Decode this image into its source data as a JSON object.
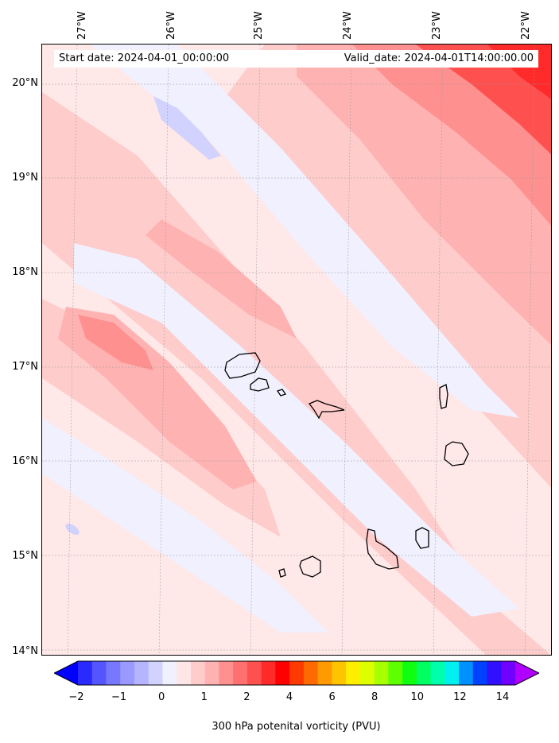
{
  "header": {
    "start_date": "Start date: 2024-04-01_00:00:00",
    "valid_date": "Valid_date: 2024-04-01T14:00:00.00"
  },
  "axes": {
    "lon_labels": [
      "27°W",
      "26°W",
      "25°W",
      "24°W",
      "23°W",
      "22°W"
    ],
    "lat_labels": [
      "20°N",
      "19°N",
      "18°N",
      "17°N",
      "16°N",
      "15°N",
      "14°N"
    ]
  },
  "colorbar": {
    "label": "300 hPa potenital vorticity (PVU)",
    "ticks": [
      "−2",
      "−1",
      "0",
      "1",
      "2",
      "4",
      "6",
      "8",
      "10",
      "12",
      "14"
    ],
    "colors": [
      "#0000ff",
      "#2a2aff",
      "#5555ff",
      "#7878ff",
      "#9999ff",
      "#b4b4ff",
      "#d2d2ff",
      "#f0f0ff",
      "#ffe6e6",
      "#ffcccc",
      "#ffb2b2",
      "#ff9090",
      "#ff7070",
      "#ff5050",
      "#ff2a2a",
      "#ff0000",
      "#ff3a00",
      "#ff6a00",
      "#ff9a00",
      "#ffc400",
      "#ffee00",
      "#ddff00",
      "#a8ff00",
      "#60ff00",
      "#10ff10",
      "#00ff60",
      "#00ffaa",
      "#00f0f0",
      "#0090ff",
      "#0040ff",
      "#3010ff",
      "#7000ff",
      "#b000ff"
    ]
  },
  "map_colors": {
    "pale_pink": "#ffe8e8",
    "light_pink": "#ffcccc",
    "pink": "#ffb2b2",
    "salmon": "#ff9090",
    "red": "#ff5050",
    "bright_red": "#ff2a2a",
    "pale_lavender": "#f0f0ff",
    "lavender": "#d2d2ff",
    "periwinkle": "#b4b4ff"
  },
  "chart_data": {
    "type": "heatmap",
    "variable": "300 hPa potenital vorticity (PVU)",
    "extent": {
      "lon": [
        -27.3,
        -21.8
      ],
      "lat": [
        13.95,
        20.45
      ]
    },
    "contour_levels": [
      -2,
      -1.75,
      -1.5,
      -1.25,
      -1,
      -0.75,
      -0.5,
      -0.25,
      0,
      0.25,
      0.5,
      0.75,
      1,
      1.25,
      1.5,
      1.75,
      2,
      2.5,
      3,
      3.5,
      4,
      4.5,
      5,
      5.5,
      6,
      6.5,
      7,
      7.5,
      8,
      8.5,
      9,
      10,
      11,
      12,
      13,
      14
    ],
    "colorbar_extend": "both",
    "gridlines": true
  }
}
